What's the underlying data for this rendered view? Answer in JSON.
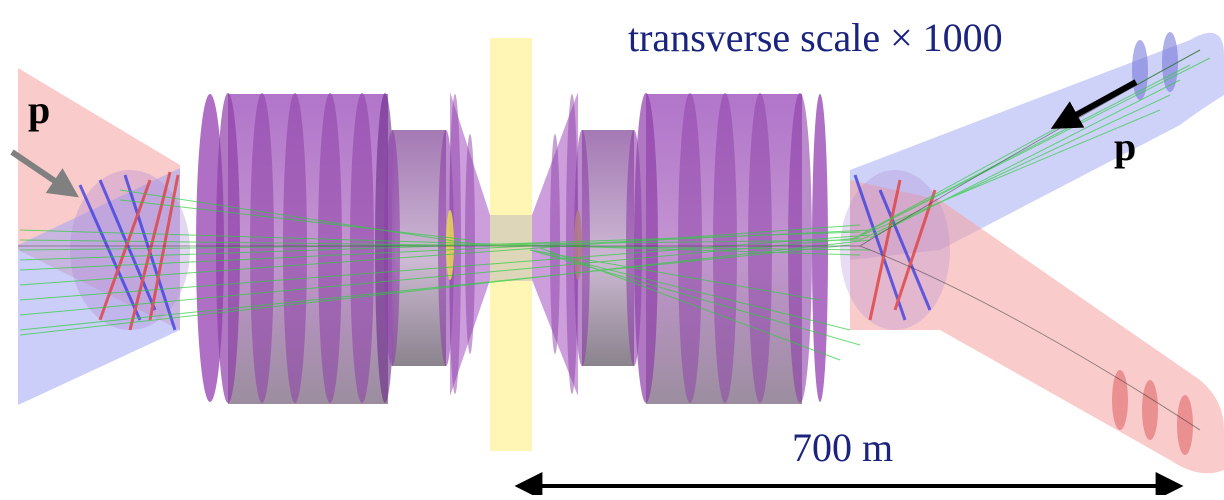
{
  "labels": {
    "title": "transverse scale × 1000",
    "distance": "700 m",
    "proton_left": "p",
    "proton_right": "p"
  },
  "colors": {
    "text": "#1a237e",
    "beam_red": "#f28a8a",
    "beam_blue": "#9aa0f0",
    "magnet_purple": "#8e3fa8",
    "ip_yellow": "#fff7b0",
    "tracks": "#2ecc40"
  }
}
